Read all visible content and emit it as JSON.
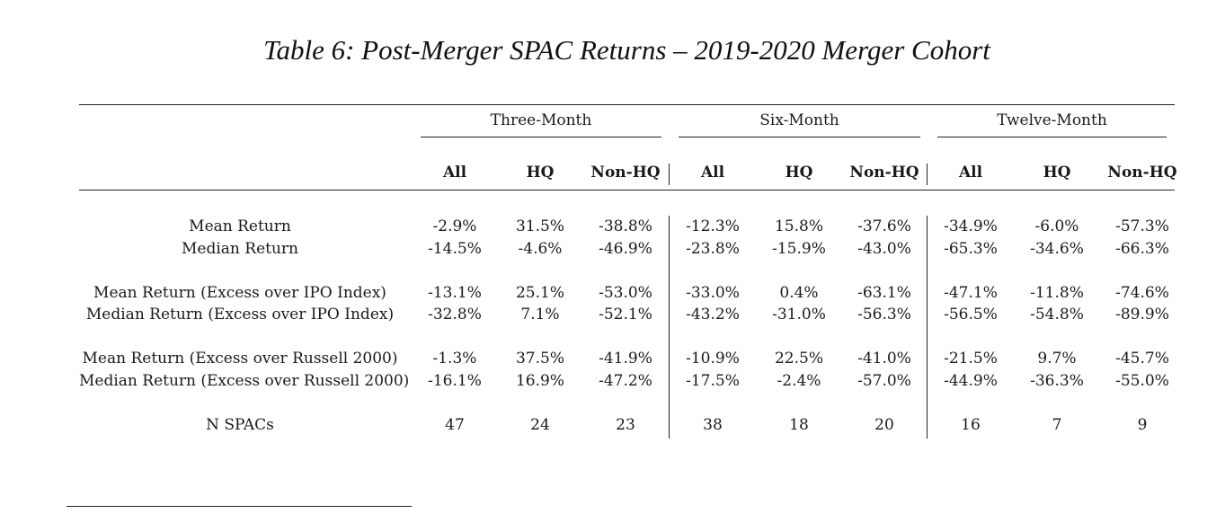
{
  "table": {
    "caption": "Table 6: Post-Merger SPAC Returns – 2019-2020 Merger Cohort",
    "groups": [
      "Three-Month",
      "Six-Month",
      "Twelve-Month"
    ],
    "subheaders": [
      "All",
      "HQ",
      "Non-HQ"
    ],
    "rows": [
      {
        "label": "Mean Return",
        "values": [
          "-2.9%",
          "31.5%",
          "-38.8%",
          "-12.3%",
          "15.8%",
          "-37.6%",
          "-34.9%",
          "-6.0%",
          "-57.3%"
        ]
      },
      {
        "label": "Median Return",
        "values": [
          "-14.5%",
          "-4.6%",
          "-46.9%",
          "-23.8%",
          "-15.9%",
          "-43.0%",
          "-65.3%",
          "-34.6%",
          "-66.3%"
        ]
      },
      {
        "label": "Mean Return (Excess over IPO Index)",
        "values": [
          "-13.1%",
          "25.1%",
          "-53.0%",
          "-33.0%",
          "0.4%",
          "-63.1%",
          "-47.1%",
          "-11.8%",
          "-74.6%"
        ]
      },
      {
        "label": "Median Return (Excess over IPO Index)",
        "values": [
          "-32.8%",
          "7.1%",
          "-52.1%",
          "-43.2%",
          "-31.0%",
          "-56.3%",
          "-56.5%",
          "-54.8%",
          "-89.9%"
        ]
      },
      {
        "label": "Mean Return (Excess over Russell 2000)",
        "values": [
          "-1.3%",
          "37.5%",
          "-41.9%",
          "-10.9%",
          "22.5%",
          "-41.0%",
          "-21.5%",
          "9.7%",
          "-45.7%"
        ]
      },
      {
        "label": "Median Return (Excess over Russell 2000)",
        "values": [
          "-16.1%",
          "16.9%",
          "-47.2%",
          "-17.5%",
          "-2.4%",
          "-57.0%",
          "-44.9%",
          "-36.3%",
          "-55.0%"
        ]
      },
      {
        "label": "N SPACs",
        "values": [
          "47",
          "24",
          "23",
          "38",
          "18",
          "20",
          "16",
          "7",
          "9"
        ]
      }
    ]
  }
}
